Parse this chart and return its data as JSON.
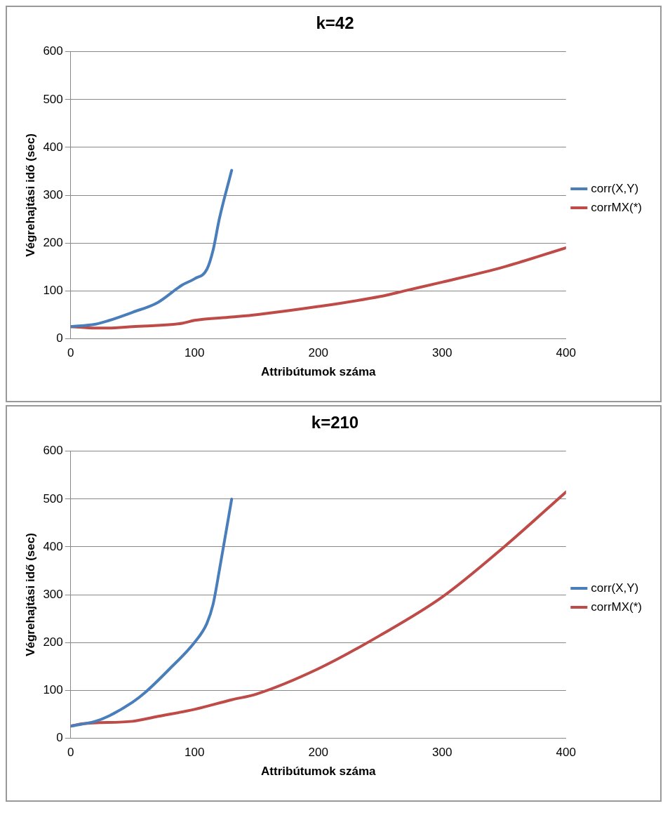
{
  "chart_data": [
    {
      "type": "line",
      "title": "k=42",
      "xlabel": "Attribútumok száma",
      "ylabel": "Végrehajtási idő (sec)",
      "xlim": [
        0,
        400
      ],
      "xticks": [
        0,
        100,
        200,
        300,
        400
      ],
      "ylim": [
        0,
        600
      ],
      "yticks": [
        0,
        100,
        200,
        300,
        400,
        500,
        600
      ],
      "grid": "y",
      "legend": "right",
      "marker": "none",
      "line_style": "solid",
      "series": [
        {
          "name": "corr(X,Y)",
          "color": "#4a7ebb",
          "x": [
            0,
            20,
            30,
            50,
            70,
            90,
            100,
            110,
            115,
            120,
            130
          ],
          "values": [
            25,
            30,
            37,
            55,
            75,
            112,
            125,
            145,
            185,
            250,
            352
          ]
        },
        {
          "name": "corrMX(*)",
          "color": "#be4b48",
          "x": [
            0,
            20,
            30,
            50,
            90,
            100,
            130,
            150,
            200,
            250,
            270,
            300,
            350,
            400
          ],
          "values": [
            25,
            22,
            22,
            25,
            32,
            38,
            45,
            50,
            67,
            88,
            100,
            118,
            150,
            190
          ]
        }
      ]
    },
    {
      "type": "line",
      "title": "k=210",
      "xlabel": "Attribútumok száma",
      "ylabel": "Végrehajtási idő (sec)",
      "xlim": [
        0,
        400
      ],
      "xticks": [
        0,
        100,
        200,
        300,
        400
      ],
      "ylim": [
        0,
        600
      ],
      "yticks": [
        0,
        100,
        200,
        300,
        400,
        500,
        600
      ],
      "grid": "y",
      "legend": "right",
      "marker": "none",
      "line_style": "solid",
      "series": [
        {
          "name": "corr(X,Y)",
          "color": "#4a7ebb",
          "x": [
            0,
            20,
            30,
            50,
            60,
            80,
            100,
            110,
            115,
            120,
            130
          ],
          "values": [
            25,
            35,
            45,
            75,
            95,
            145,
            200,
            240,
            280,
            350,
            500
          ]
        },
        {
          "name": "corrMX(*)",
          "color": "#be4b48",
          "x": [
            0,
            10,
            50,
            70,
            100,
            130,
            150,
            200,
            250,
            300,
            350,
            400
          ],
          "values": [
            25,
            30,
            35,
            45,
            60,
            80,
            92,
            145,
            215,
            295,
            400,
            515
          ]
        }
      ]
    }
  ]
}
